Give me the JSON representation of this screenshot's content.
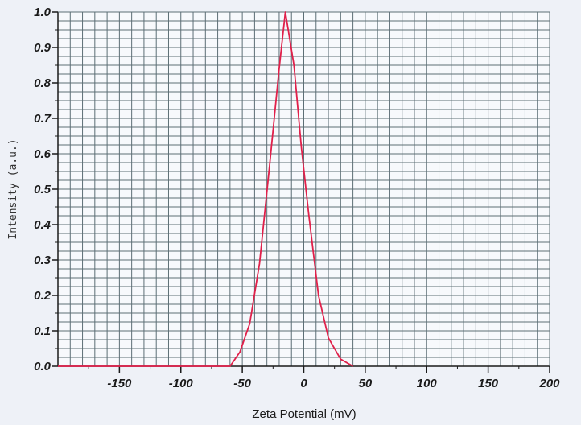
{
  "chart_data": {
    "type": "line",
    "title": "",
    "xlabel": "Zeta Potential (mV)",
    "ylabel": "Intensity (a.u.)",
    "xlim": [
      -200,
      200
    ],
    "ylim": [
      0.0,
      1.0
    ],
    "xticks": [
      -150,
      -100,
      -50,
      0,
      50,
      100,
      150,
      200
    ],
    "xtick_labels": [
      "-150",
      "-100",
      "-50",
      "0",
      "50",
      "100",
      "150",
      "200"
    ],
    "yticks": [
      0.0,
      0.1,
      0.2,
      0.3,
      0.4,
      0.5,
      0.6,
      0.7,
      0.8,
      0.9,
      1.0
    ],
    "ytick_labels": [
      "0.0",
      "0.1",
      "0.2",
      "0.3",
      "0.4",
      "0.5",
      "0.6",
      "0.7",
      "0.8",
      "0.9",
      "1.0"
    ],
    "grid": true,
    "series": [
      {
        "color": "#e0204a",
        "x": [
          -200,
          -195,
          -60,
          -52,
          -44,
          -36,
          -28,
          -20,
          -15,
          -8,
          -2,
          4,
          12,
          20,
          30,
          40
        ],
        "y": [
          0.0,
          0.0,
          0.0,
          0.04,
          0.12,
          0.29,
          0.56,
          0.84,
          1.0,
          0.85,
          0.62,
          0.43,
          0.2,
          0.08,
          0.02,
          0.0
        ]
      }
    ]
  },
  "colors": {
    "background": "#eef1f7",
    "plot_area": "#f7f9fc",
    "grid": "#5c6e75",
    "axis": "#1a1a1a",
    "line": "#e0204a"
  }
}
